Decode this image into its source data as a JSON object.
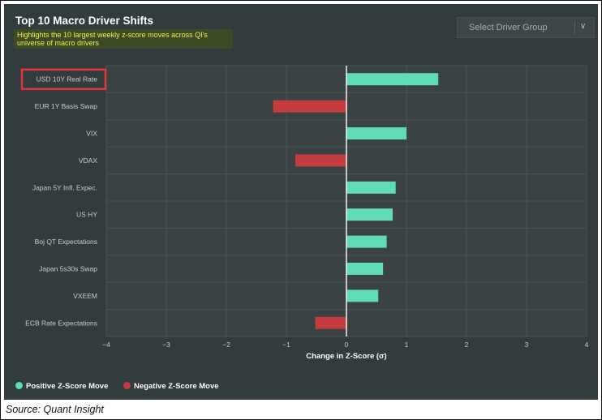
{
  "chart_data": {
    "type": "bar",
    "orientation": "horizontal",
    "title": "Top 10 Macro Driver Shifts",
    "subtitle": "Highlights the 10 largest weekly z-score moves across QI's universe of macro drivers",
    "xlabel": "Change in Z-Score (σ)",
    "ylabel": "",
    "xlim": [
      -4,
      4
    ],
    "xticks": [
      -4,
      -3,
      -2,
      -1,
      0,
      1,
      2,
      3,
      4
    ],
    "xtick_labels": [
      "−4",
      "−3",
      "−2",
      "−1",
      "0",
      "1",
      "2",
      "3",
      "4"
    ],
    "categories": [
      "USD 10Y Real Rate",
      "EUR 1Y Basis Swap",
      "VIX",
      "VDAX",
      "Japan 5Y Infl. Expec.",
      "US HY",
      "Boj QT Expectations",
      "Japan 5s30s Swap",
      "VXEEM",
      "ECB Rate Expectations"
    ],
    "values": [
      1.53,
      -1.22,
      1.0,
      -0.85,
      0.82,
      0.77,
      0.67,
      0.61,
      0.53,
      -0.52
    ],
    "highlighted_category": "USD 10Y Real Rate",
    "grid": true,
    "legend_position": "bottom-left",
    "legend": [
      {
        "label": "Positive Z-Score Move",
        "color": "#5fdcb5"
      },
      {
        "label": "Negative Z-Score Move",
        "color": "#c43c3f"
      }
    ],
    "colors": {
      "positive": "#5fdcb5",
      "negative": "#c43c3f",
      "highlight_box": "#e0373d"
    }
  },
  "dropdown": {
    "label": "Select Driver Group"
  },
  "source": "Source: Quant Insight"
}
